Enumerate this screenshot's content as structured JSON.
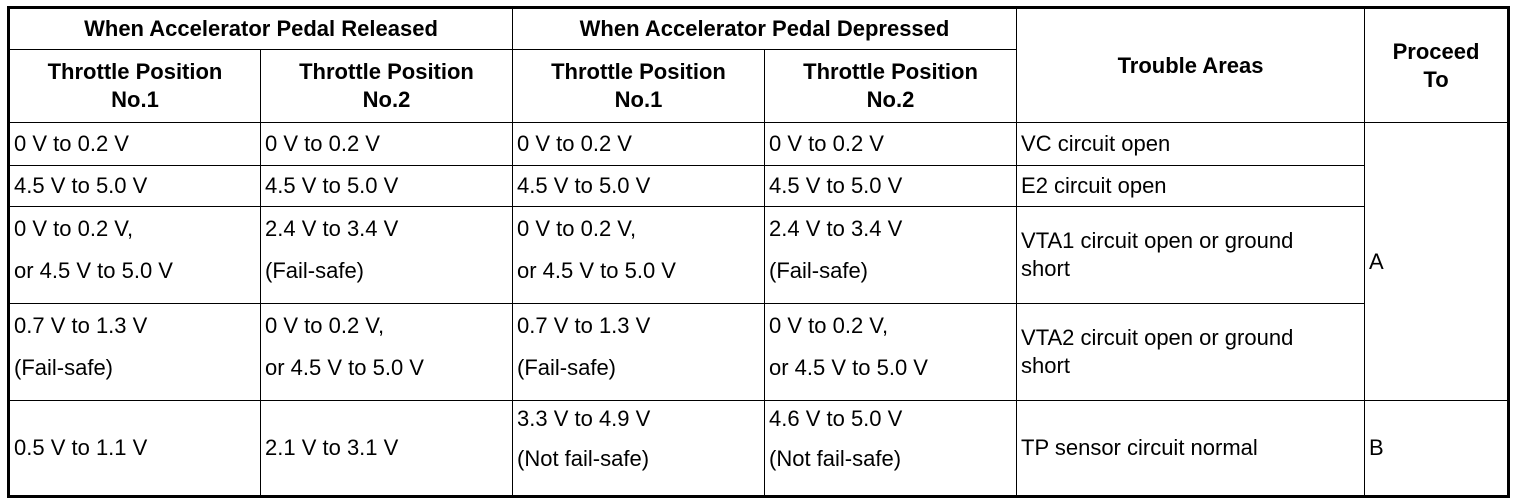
{
  "headers": {
    "released": "When Accelerator Pedal Released",
    "depressed": "When Accelerator Pedal Depressed",
    "tp1_line1": "Throttle Position",
    "tp1_line2": "No.1",
    "tp2_line1": "Throttle Position",
    "tp2_line2": "No.2",
    "trouble": "Trouble Areas",
    "proceed_line1": "Proceed",
    "proceed_line2": "To"
  },
  "rows": [
    {
      "rel1": [
        "0 V to 0.2 V"
      ],
      "rel2": [
        "0 V to 0.2 V"
      ],
      "dep1": [
        "0 V to 0.2 V"
      ],
      "dep2": [
        "0 V to 0.2 V"
      ],
      "trouble": "VC circuit open"
    },
    {
      "rel1": [
        "4.5 V to 5.0 V"
      ],
      "rel2": [
        "4.5 V to 5.0 V"
      ],
      "dep1": [
        "4.5 V to 5.0 V"
      ],
      "dep2": [
        "4.5 V to 5.0 V"
      ],
      "trouble": "E2 circuit open"
    },
    {
      "rel1": [
        "0 V to 0.2 V,",
        "or 4.5 V to 5.0 V"
      ],
      "rel2": [
        "2.4 V to 3.4 V",
        "(Fail-safe)"
      ],
      "dep1": [
        "0 V to 0.2 V,",
        "or 4.5 V to 5.0 V"
      ],
      "dep2": [
        "2.4 V to 3.4 V",
        "(Fail-safe)"
      ],
      "trouble_line1": "VTA1 circuit open or ground",
      "trouble_line2": "short"
    },
    {
      "rel1": [
        "0.7 V to 1.3 V",
        "(Fail-safe)"
      ],
      "rel2": [
        "0 V to 0.2 V,",
        "or 4.5 V to 5.0 V"
      ],
      "dep1": [
        "0.7 V to 1.3 V",
        "(Fail-safe)"
      ],
      "dep2": [
        "0 V to 0.2 V,",
        "or 4.5 V to 5.0 V"
      ],
      "trouble_line1": "VTA2 circuit open or ground",
      "trouble_line2": "short"
    },
    {
      "rel1": [
        "0.5 V to 1.1 V"
      ],
      "rel2": [
        "2.1 V to 3.1 V"
      ],
      "dep1": [
        "3.3 V to 4.9 V",
        "(Not fail-safe)"
      ],
      "dep2": [
        "4.6 V to 5.0 V",
        "(Not fail-safe)"
      ],
      "trouble": "TP sensor circuit normal"
    }
  ],
  "proceed": {
    "group_a": "A",
    "group_b": "B"
  }
}
